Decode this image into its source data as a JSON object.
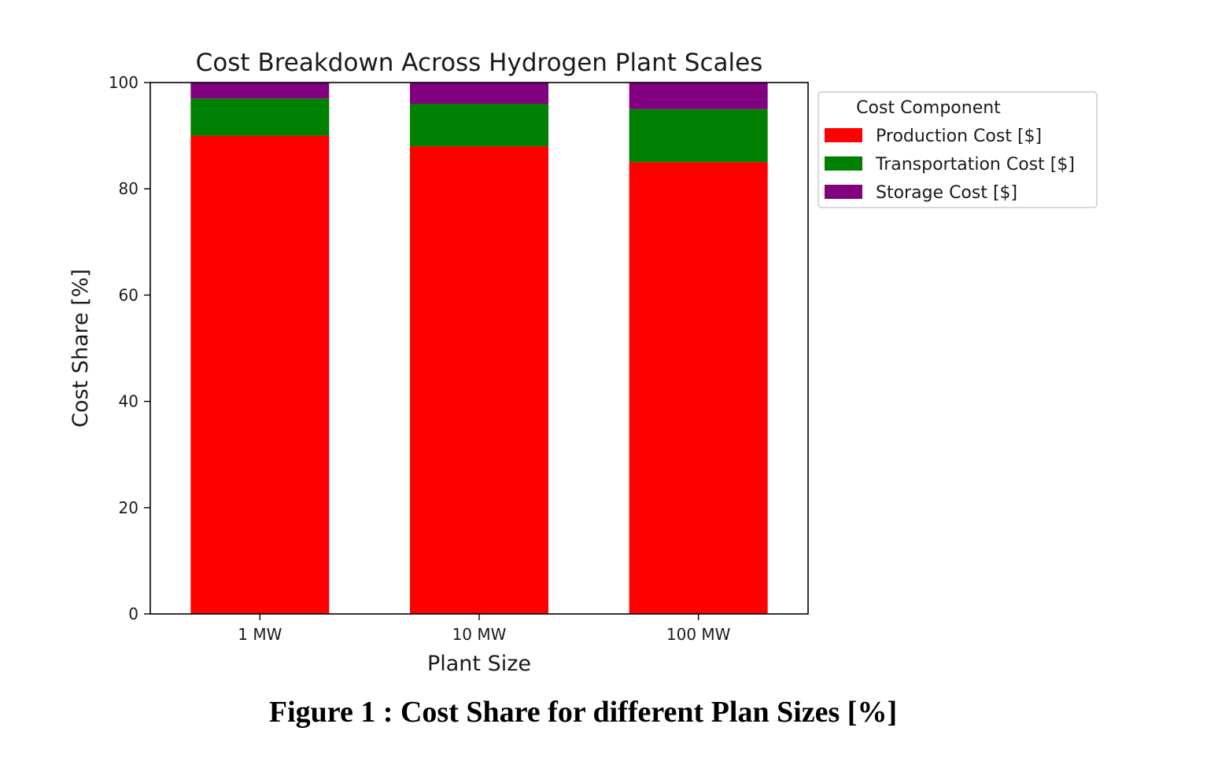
{
  "chart_data": {
    "type": "bar",
    "stacked": true,
    "title": "Cost Breakdown Across Hydrogen Plant Scales",
    "xlabel": "Plant Size",
    "ylabel": "Cost Share [%]",
    "categories": [
      "1 MW",
      "10 MW",
      "100 MW"
    ],
    "ylim": [
      0,
      100
    ],
    "yticks": [
      0,
      20,
      40,
      60,
      80,
      100
    ],
    "grid": false,
    "legend": {
      "title": "Cost Component",
      "placement": "outside right, top"
    },
    "series": [
      {
        "name": "Production Cost [$]",
        "color": "#ff0000",
        "values": [
          90,
          88,
          85
        ]
      },
      {
        "name": "Transportation Cost [$]",
        "color": "#008000",
        "values": [
          7,
          8,
          10
        ]
      },
      {
        "name": "Storage Cost [$]",
        "color": "#800080",
        "values": [
          3,
          4,
          5
        ]
      }
    ]
  },
  "caption": "Figure 1 : Cost Share for different Plan Sizes [%]"
}
